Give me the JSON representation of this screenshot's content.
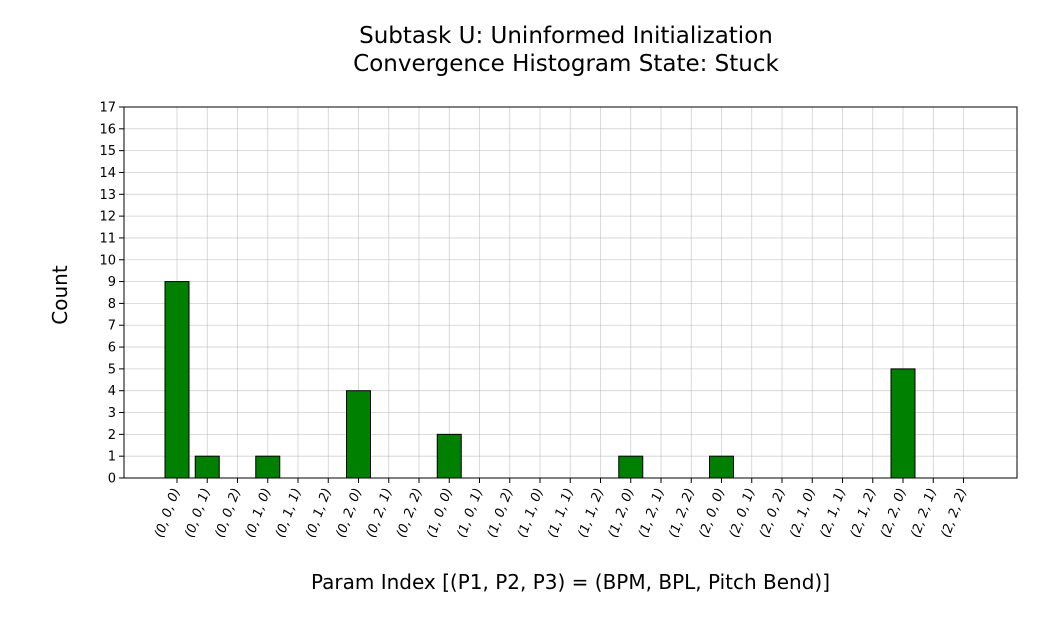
{
  "title_line1": "Subtask U: Uninformed Initialization",
  "title_line2": "Convergence Histogram State: Stuck",
  "chart_data": {
    "type": "bar",
    "xlabel": "Param Index [(P1, P2, P3) = (BPM, BPL, Pitch Bend)]",
    "ylabel": "Count",
    "categories": [
      "(0, 0, 0)",
      "(0, 0, 1)",
      "(0, 0, 2)",
      "(0, 1, 0)",
      "(0, 1, 1)",
      "(0, 1, 2)",
      "(0, 2, 0)",
      "(0, 2, 1)",
      "(0, 2, 2)",
      "(1, 0, 0)",
      "(1, 0, 1)",
      "(1, 0, 2)",
      "(1, 1, 0)",
      "(1, 1, 1)",
      "(1, 1, 2)",
      "(1, 2, 0)",
      "(1, 2, 1)",
      "(1, 2, 2)",
      "(2, 0, 0)",
      "(2, 0, 1)",
      "(2, 0, 2)",
      "(2, 1, 0)",
      "(2, 1, 1)",
      "(2, 1, 2)",
      "(2, 2, 0)",
      "(2, 2, 1)",
      "(2, 2, 2)"
    ],
    "values": [
      9,
      1,
      0,
      1,
      0,
      0,
      4,
      0,
      0,
      2,
      0,
      0,
      0,
      0,
      0,
      1,
      0,
      0,
      1,
      0,
      0,
      0,
      0,
      0,
      5,
      0,
      0
    ],
    "ylim": [
      0,
      17
    ],
    "yticks": [
      0,
      1,
      2,
      3,
      4,
      5,
      6,
      7,
      8,
      9,
      10,
      11,
      12,
      13,
      14,
      15,
      16,
      17
    ],
    "grid": true,
    "bar_color": "#008000",
    "edge_color": "#000000"
  }
}
